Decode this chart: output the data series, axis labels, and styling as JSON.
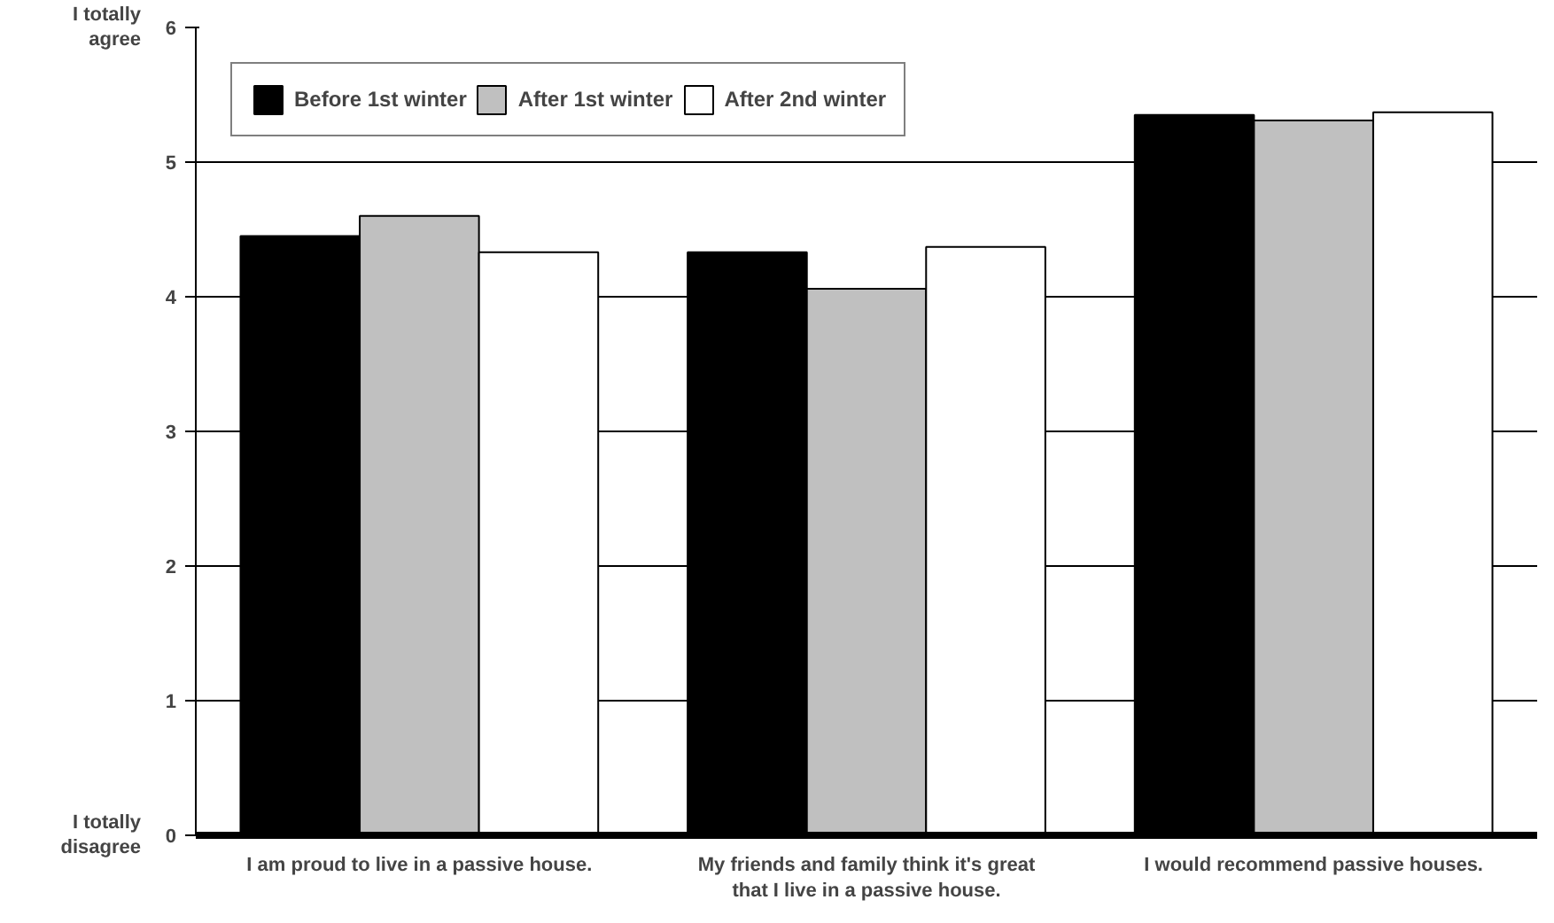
{
  "chart_data": {
    "type": "bar",
    "categories": [
      "I am proud to live in a passive house.",
      "My friends and family think it's great that I live in a passive house.",
      "I would recommend passive houses."
    ],
    "series": [
      {
        "name": "Before 1st winter",
        "color": "#000000",
        "values": [
          4.45,
          4.33,
          5.35
        ]
      },
      {
        "name": "After 1st winter",
        "color": "#c0c0c0",
        "values": [
          4.6,
          4.06,
          5.31
        ]
      },
      {
        "name": "After 2nd winter",
        "color": "#ffffff",
        "values": [
          4.33,
          4.37,
          5.37
        ]
      }
    ],
    "ylim": [
      0,
      6
    ],
    "yticks": [
      0,
      1,
      2,
      3,
      4,
      5,
      6
    ],
    "annotations": [
      "I totally agree",
      "I totally disagree"
    ],
    "grid": "y",
    "legend": "top left"
  }
}
